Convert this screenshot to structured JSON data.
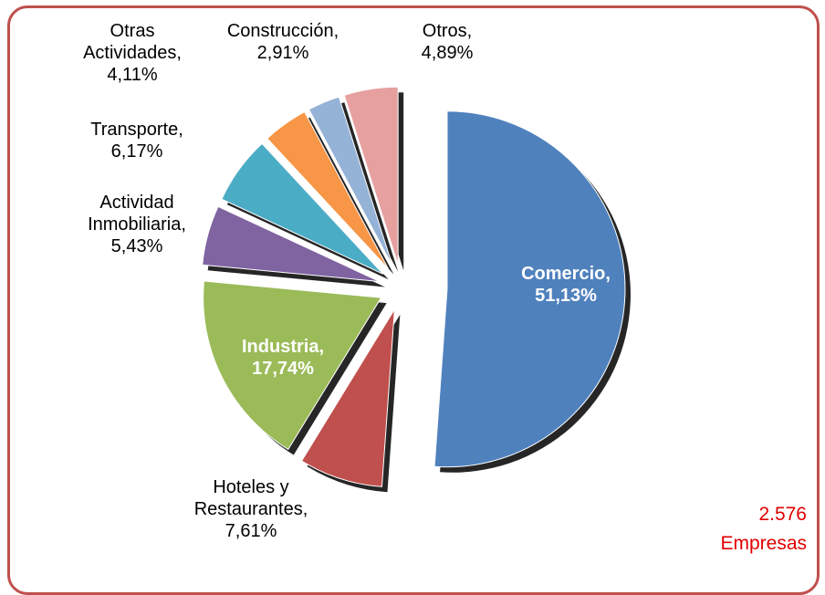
{
  "chart_data": {
    "type": "pie",
    "categories": [
      "Comercio,",
      "Hoteles y Restaurantes,",
      "Industria,",
      "Actividad Inmobiliaria,",
      "Transporte,",
      "Otras Actividades,",
      "Construcción,",
      "Otros,"
    ],
    "values": [
      51.13,
      7.61,
      17.74,
      5.43,
      6.17,
      4.11,
      2.91,
      4.89
    ],
    "value_labels": [
      "51,13%",
      "7,61%",
      "17,74%",
      "5,43%",
      "6,17%",
      "4,11%",
      "2,91%",
      "4,89%"
    ],
    "colors": [
      "#4f81bd",
      "#c0504d",
      "#9bbb59",
      "#8064a2",
      "#4bacc6",
      "#f79646",
      "#95b3d7",
      "#e6a0a0"
    ],
    "annotation": [
      "2.576",
      "Empresas"
    ]
  }
}
